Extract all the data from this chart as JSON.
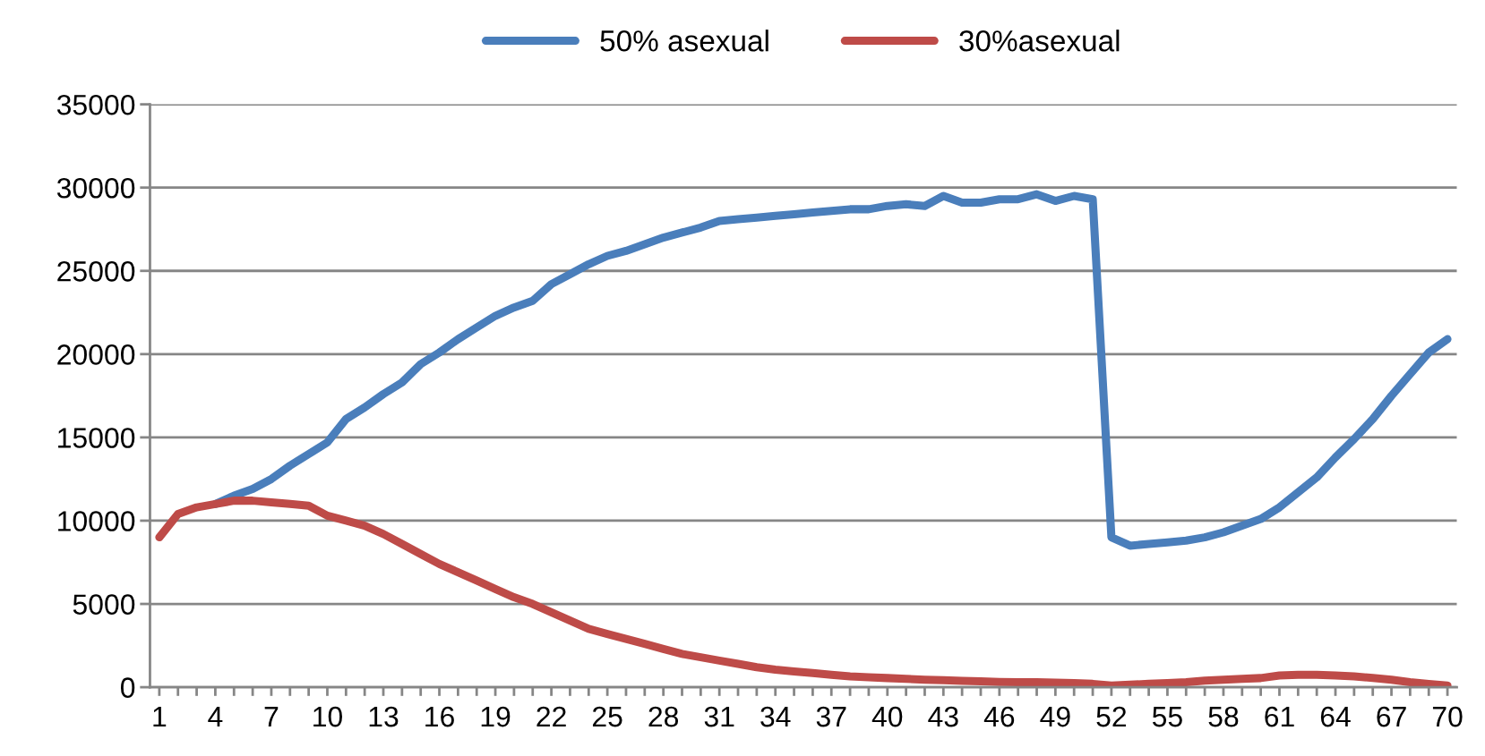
{
  "chart_data": {
    "type": "line",
    "categories": [
      "1",
      null,
      null,
      "4",
      null,
      null,
      "7",
      null,
      null,
      "10",
      null,
      null,
      "13",
      null,
      null,
      "16",
      null,
      null,
      "19",
      null,
      null,
      "22",
      null,
      null,
      "25",
      null,
      null,
      "28",
      null,
      null,
      "31",
      null,
      null,
      "34",
      null,
      null,
      "37",
      null,
      null,
      "40",
      null,
      null,
      "43",
      null,
      null,
      "46",
      null,
      null,
      "49",
      null,
      null,
      "52",
      null,
      null,
      "55",
      null,
      null,
      "58",
      null,
      null,
      "61",
      null,
      null,
      "64",
      null,
      null,
      "67",
      null,
      null,
      "70"
    ],
    "series": [
      {
        "name": "50% asexual",
        "color": "#4a7ebb",
        "values": [
          null,
          null,
          null,
          11000,
          11500,
          11900,
          12500,
          13300,
          14000,
          14700,
          16100,
          16800,
          17600,
          18300,
          19400,
          20100,
          20900,
          21600,
          22300,
          22800,
          23200,
          24200,
          24800,
          25400,
          25900,
          26200,
          26600,
          27000,
          27300,
          27600,
          28000,
          28100,
          28200,
          28300,
          28400,
          28500,
          28600,
          28700,
          28700,
          28900,
          29000,
          28900,
          29500,
          29100,
          29100,
          29300,
          29300,
          29600,
          29200,
          29500,
          29300,
          9000,
          8500,
          8600,
          8700,
          8800,
          9000,
          9300,
          9700,
          10100,
          10800,
          11700,
          12600,
          13800,
          14900,
          16100,
          17500,
          18800,
          20100,
          20900
        ]
      },
      {
        "name": "30%asexual",
        "color": "#be4b48",
        "values": [
          9000,
          10400,
          10800,
          11000,
          11200,
          11200,
          11100,
          11000,
          10900,
          10300,
          10000,
          9700,
          9200,
          8600,
          8000,
          7400,
          6900,
          6400,
          5900,
          5400,
          5000,
          4500,
          4000,
          3500,
          3200,
          2900,
          2600,
          2300,
          2000,
          1800,
          1600,
          1400,
          1200,
          1050,
          950,
          850,
          750,
          650,
          600,
          550,
          500,
          450,
          420,
          380,
          350,
          320,
          300,
          300,
          280,
          250,
          200,
          100,
          150,
          200,
          250,
          300,
          400,
          450,
          500,
          550,
          700,
          750,
          750,
          700,
          650,
          550,
          450,
          300,
          200,
          100
        ]
      }
    ],
    "ylim": [
      0,
      35000
    ],
    "yticks": [
      0,
      5000,
      10000,
      15000,
      20000,
      25000,
      30000,
      35000
    ],
    "grid": "y",
    "legend": "top",
    "marker": "none",
    "line_style": "solid"
  }
}
